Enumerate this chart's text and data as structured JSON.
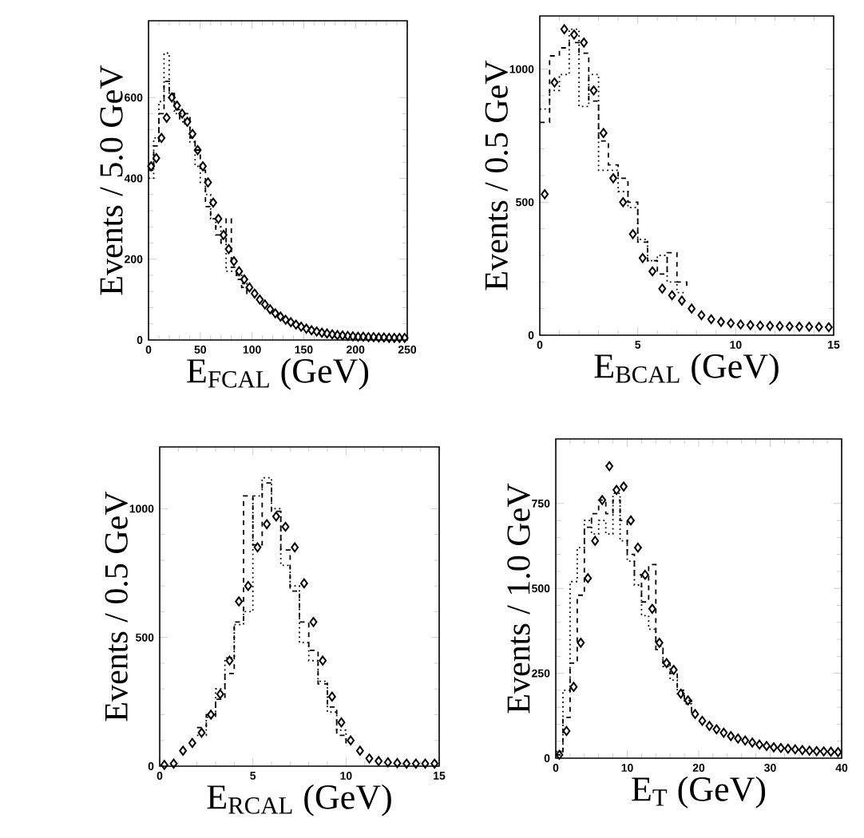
{
  "chart_data": [
    {
      "type": "scatter",
      "xlabel": "E$_{FCAL}$ (GeV)",
      "ylabel": "Events / 5.0 GeV",
      "xlim": [
        0,
        250
      ],
      "ylim": [
        0,
        790
      ],
      "xticks": [
        0,
        50,
        100,
        150,
        200,
        250
      ],
      "yticks": [
        0,
        200,
        400,
        600
      ],
      "series": [
        {
          "color": "#000000",
          "marker": "diamond",
          "x": [
            2.5,
            7.5,
            12.5,
            17.5,
            22.5,
            27.5,
            32.5,
            37.5,
            42.5,
            47.5,
            52.5,
            57.5,
            62.5,
            67.5,
            72.5,
            77.5,
            82.5,
            87.5,
            92.5,
            97.5,
            102.5,
            107.5,
            112.5,
            117.5,
            122.5,
            127.5,
            132.5,
            137.5,
            142.5,
            147.5,
            152.5,
            157.5,
            162.5,
            167.5,
            172.5,
            177.5,
            182.5,
            187.5,
            192.5,
            197.5,
            202.5,
            207.5,
            212.5,
            217.5,
            222.5,
            227.5,
            232.5,
            237.5,
            242.5,
            247.5
          ],
          "values": [
            430,
            450,
            500,
            550,
            600,
            580,
            560,
            540,
            510,
            470,
            430,
            390,
            340,
            300,
            260,
            225,
            195,
            170,
            150,
            130,
            115,
            100,
            88,
            76,
            66,
            58,
            50,
            44,
            38,
            33,
            28,
            24,
            21,
            18,
            16,
            14,
            12,
            11,
            10,
            9,
            8,
            8,
            7,
            7,
            6,
            6,
            5,
            5,
            5,
            5
          ]
        },
        {
          "type": "step",
          "color": "#000000",
          "line_style": "dashed",
          "x": [
            0,
            5,
            10,
            15,
            20,
            25,
            30,
            35,
            40,
            45,
            50,
            55,
            60,
            65,
            70,
            75,
            80,
            85,
            90,
            95
          ],
          "values": [
            420,
            480,
            560,
            640,
            610,
            570,
            540,
            560,
            500,
            470,
            420,
            330,
            300,
            260,
            240,
            300,
            180,
            150,
            130,
            110
          ]
        },
        {
          "type": "step",
          "color": "#000000",
          "line_style": "dotted",
          "x": [
            0,
            5,
            10,
            15,
            20,
            25,
            30,
            35,
            40,
            45,
            50,
            55,
            60,
            65,
            70,
            75,
            80,
            85,
            90,
            95
          ],
          "values": [
            400,
            500,
            590,
            710,
            600,
            560,
            560,
            530,
            490,
            430,
            390,
            360,
            300,
            280,
            250,
            170,
            170,
            160,
            140,
            120
          ]
        }
      ]
    },
    {
      "type": "scatter",
      "xlabel": "E$_{BCAL}$ (GeV)",
      "ylabel": "Events / 0.5 GeV",
      "xlim": [
        0,
        15
      ],
      "ylim": [
        0,
        1200
      ],
      "xticks": [
        0,
        5,
        10,
        15
      ],
      "yticks": [
        0,
        500,
        1000
      ],
      "series": [
        {
          "color": "#000000",
          "marker": "diamond",
          "x": [
            0.25,
            0.75,
            1.25,
            1.75,
            2.25,
            2.75,
            3.25,
            3.75,
            4.25,
            4.75,
            5.25,
            5.75,
            6.25,
            6.75,
            7.25,
            7.75,
            8.25,
            8.75,
            9.25,
            9.75,
            10.25,
            10.75,
            11.25,
            11.75,
            12.25,
            12.75,
            13.25,
            13.75,
            14.25,
            14.75
          ],
          "values": [
            530,
            950,
            1150,
            1130,
            1100,
            920,
            760,
            590,
            500,
            380,
            290,
            240,
            175,
            150,
            130,
            100,
            75,
            60,
            50,
            45,
            40,
            38,
            36,
            35,
            34,
            33,
            32,
            32,
            31,
            30
          ]
        },
        {
          "type": "step",
          "color": "#000000",
          "line_style": "dashed",
          "x": [
            0,
            0.5,
            1,
            1.5,
            2,
            2.5,
            3,
            3.5,
            4,
            4.5,
            5,
            5.5,
            6,
            6.5,
            7,
            7.5
          ],
          "values": [
            800,
            1050,
            1080,
            1100,
            1060,
            880,
            730,
            640,
            590,
            500,
            350,
            280,
            230,
            310,
            200,
            180
          ]
        },
        {
          "type": "step",
          "color": "#000000",
          "line_style": "dotted",
          "x": [
            0,
            0.5,
            1,
            1.5,
            2,
            2.5,
            3,
            3.5,
            4,
            4.5,
            5,
            5.5,
            6,
            6.5,
            7,
            7.5
          ],
          "values": [
            850,
            920,
            980,
            1150,
            860,
            980,
            620,
            620,
            540,
            480,
            360,
            280,
            300,
            200,
            160,
            160
          ]
        }
      ]
    },
    {
      "type": "scatter",
      "xlabel": "E$_{RCAL}$ (GeV)",
      "ylabel": "Events / 0.5 GeV",
      "xlim": [
        0,
        15
      ],
      "ylim": [
        0,
        1240
      ],
      "xticks": [
        0,
        5,
        10,
        15
      ],
      "yticks": [
        0,
        500,
        1000
      ],
      "series": [
        {
          "color": "#000000",
          "marker": "diamond",
          "x": [
            0.25,
            0.75,
            1.25,
            1.75,
            2.25,
            2.75,
            3.25,
            3.75,
            4.25,
            4.75,
            5.25,
            5.75,
            6.25,
            6.75,
            7.25,
            7.75,
            8.25,
            8.75,
            9.25,
            9.75,
            10.25,
            10.75,
            11.25,
            11.75,
            12.25,
            12.75,
            13.25,
            13.75,
            14.25,
            14.75
          ],
          "values": [
            5,
            10,
            60,
            90,
            130,
            200,
            280,
            410,
            640,
            700,
            850,
            940,
            970,
            930,
            850,
            710,
            560,
            410,
            270,
            170,
            100,
            60,
            30,
            20,
            15,
            12,
            10,
            10,
            10,
            10
          ]
        },
        {
          "type": "step",
          "color": "#000000",
          "line_style": "dashed",
          "x": [
            2,
            2.5,
            3,
            3.5,
            4,
            4.5,
            5,
            5.5,
            6,
            6.5,
            7,
            7.5,
            8,
            8.5,
            9,
            9.5,
            10
          ],
          "values": [
            150,
            200,
            260,
            360,
            560,
            1050,
            860,
            1100,
            990,
            840,
            680,
            560,
            450,
            320,
            230,
            120,
            80
          ]
        },
        {
          "type": "step",
          "color": "#000000",
          "line_style": "dotted",
          "x": [
            2,
            2.5,
            3,
            3.5,
            4,
            4.5,
            5,
            5.5,
            6,
            6.5,
            7,
            7.5,
            8,
            8.5,
            9,
            9.5,
            10
          ],
          "values": [
            120,
            190,
            300,
            420,
            550,
            600,
            1050,
            1120,
            1000,
            780,
            700,
            480,
            410,
            330,
            210,
            140,
            90
          ]
        }
      ]
    },
    {
      "type": "scatter",
      "xlabel": "E$_{T}$ (GeV)",
      "ylabel": "Events / 1.0 GeV",
      "xlim": [
        0,
        40
      ],
      "ylim": [
        0,
        940
      ],
      "xticks": [
        0,
        10,
        20,
        30,
        40
      ],
      "yticks": [
        0,
        250,
        500,
        750
      ],
      "series": [
        {
          "color": "#000000",
          "marker": "diamond",
          "x": [
            0.5,
            1.5,
            2.5,
            3.5,
            4.5,
            5.5,
            6.5,
            7.5,
            8.5,
            9.5,
            10.5,
            11.5,
            12.5,
            13.5,
            14.5,
            15.5,
            16.5,
            17.5,
            18.5,
            19.5,
            20.5,
            21.5,
            22.5,
            23.5,
            24.5,
            25.5,
            26.5,
            27.5,
            28.5,
            29.5,
            30.5,
            31.5,
            32.5,
            33.5,
            34.5,
            35.5,
            36.5,
            37.5,
            38.5,
            39.5
          ],
          "values": [
            10,
            80,
            210,
            340,
            530,
            640,
            760,
            860,
            790,
            800,
            700,
            620,
            540,
            440,
            340,
            280,
            260,
            190,
            170,
            130,
            110,
            95,
            85,
            75,
            65,
            58,
            52,
            46,
            40,
            36,
            32,
            30,
            28,
            26,
            24,
            22,
            21,
            20,
            19,
            18
          ]
        },
        {
          "type": "step",
          "color": "#000000",
          "line_style": "dashed",
          "x": [
            0,
            1,
            2,
            3,
            4,
            5,
            6,
            7,
            8,
            9,
            10,
            11,
            12,
            13,
            14,
            15,
            16,
            17,
            18,
            19
          ],
          "values": [
            10,
            120,
            280,
            480,
            680,
            720,
            760,
            720,
            760,
            700,
            600,
            540,
            460,
            570,
            320,
            280,
            250,
            200,
            170,
            130
          ]
        },
        {
          "type": "step",
          "color": "#000000",
          "line_style": "dotted",
          "x": [
            0,
            1,
            2,
            3,
            4,
            5,
            6,
            7,
            8,
            9,
            10,
            11,
            12,
            13,
            14,
            15,
            16,
            17,
            18,
            19
          ],
          "values": [
            20,
            200,
            520,
            620,
            700,
            660,
            700,
            660,
            780,
            640,
            580,
            510,
            420,
            380,
            330,
            270,
            230,
            190,
            160,
            130
          ]
        }
      ]
    }
  ]
}
